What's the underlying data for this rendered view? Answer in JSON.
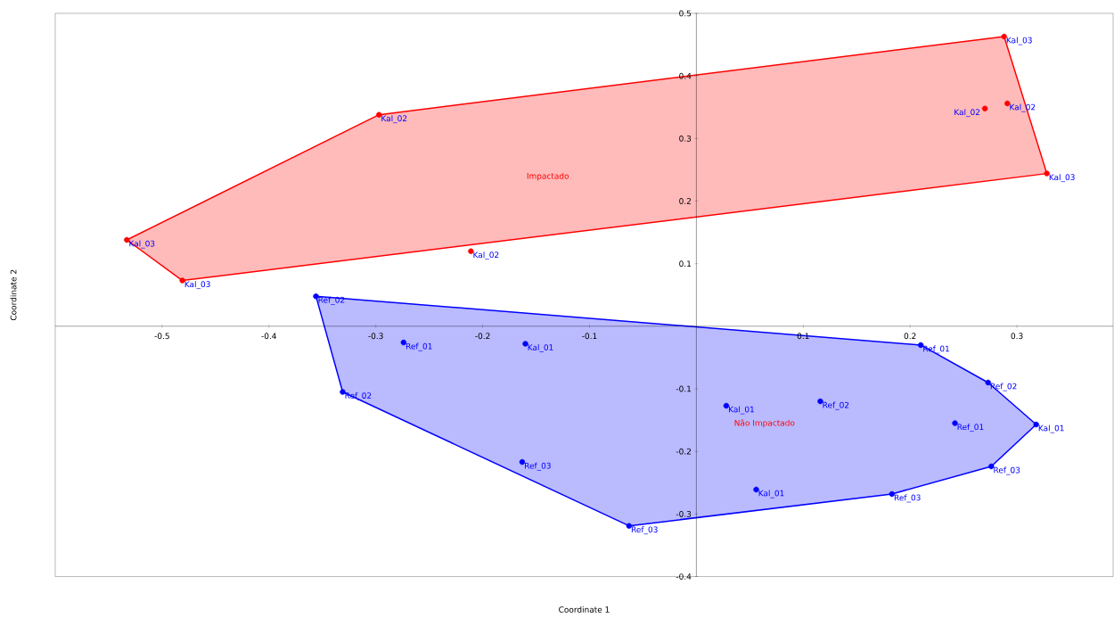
{
  "chart_data": {
    "type": "scatter",
    "xlabel": "Coordinate 1",
    "ylabel": "Coordinate 2",
    "xlim": [
      -0.6,
      0.39
    ],
    "ylim": [
      -0.4,
      0.5
    ],
    "xticks": [
      -0.5,
      -0.4,
      -0.3,
      -0.2,
      -0.1,
      0.1,
      0.2,
      0.3
    ],
    "yticks": [
      -0.4,
      -0.3,
      -0.2,
      -0.1,
      0.1,
      0.2,
      0.3,
      0.4,
      0.5
    ],
    "series": [
      {
        "type": "area",
        "marker": "none",
        "color": "#ff0000",
        "x": [
          -0.533,
          -0.297,
          0.288,
          0.328,
          -0.481
        ],
        "values": [
          0.138,
          0.338,
          0.463,
          0.244,
          0.073
        ]
      },
      {
        "type": "area",
        "marker": "none",
        "color": "#0000ff",
        "x": [
          -0.356,
          0.21,
          0.273,
          0.318,
          0.276,
          0.183,
          -0.063,
          -0.331
        ],
        "values": [
          0.048,
          -0.03,
          -0.09,
          -0.157,
          -0.224,
          -0.268,
          -0.319,
          -0.105
        ]
      },
      {
        "marker": "circle",
        "color": "#ff0000",
        "x": [
          0.288,
          0.291,
          0.27,
          0.328,
          -0.297,
          -0.533,
          -0.481,
          -0.211
        ],
        "values": [
          0.463,
          0.356,
          0.348,
          0.244,
          0.338,
          0.138,
          0.073,
          0.12
        ]
      },
      {
        "marker": "circle",
        "color": "#0000ff",
        "x": [
          -0.356,
          -0.274,
          -0.16,
          -0.331,
          -0.163,
          -0.063,
          0.028,
          0.116,
          0.056,
          0.21,
          0.273,
          0.242,
          0.318,
          0.276,
          0.183
        ],
        "values": [
          0.048,
          -0.026,
          -0.028,
          -0.105,
          -0.217,
          -0.319,
          -0.127,
          -0.12,
          -0.261,
          -0.03,
          -0.09,
          -0.155,
          -0.157,
          -0.224,
          -0.268
        ]
      }
    ],
    "annotations": [
      {
        "text": "Kal_03",
        "x": 0.288,
        "y": 0.463
      },
      {
        "text": "Kal_02",
        "x": 0.291,
        "y": 0.356
      },
      {
        "text": "Kal_02",
        "x": 0.27,
        "y": 0.348
      },
      {
        "text": "Kal_03",
        "x": 0.328,
        "y": 0.244
      },
      {
        "text": "Kal_02",
        "x": -0.297,
        "y": 0.338
      },
      {
        "text": "Kal_03",
        "x": -0.533,
        "y": 0.138
      },
      {
        "text": "Kal_03",
        "x": -0.481,
        "y": 0.073
      },
      {
        "text": "Kal_02",
        "x": -0.211,
        "y": 0.12
      },
      {
        "text": "Ref_02",
        "x": -0.356,
        "y": 0.048
      },
      {
        "text": "Ref_01",
        "x": -0.274,
        "y": -0.026
      },
      {
        "text": "Kal_01",
        "x": -0.16,
        "y": -0.028
      },
      {
        "text": "Ref_02",
        "x": -0.331,
        "y": -0.105
      },
      {
        "text": "Ref_03",
        "x": -0.163,
        "y": -0.217
      },
      {
        "text": "Ref_03",
        "x": -0.063,
        "y": -0.319
      },
      {
        "text": "Kal_01",
        "x": 0.028,
        "y": -0.127
      },
      {
        "text": "Ref_02",
        "x": 0.116,
        "y": -0.12
      },
      {
        "text": "Kal_01",
        "x": 0.056,
        "y": -0.261
      },
      {
        "text": "Ref_01",
        "x": 0.21,
        "y": -0.03
      },
      {
        "text": "Ref_02",
        "x": 0.273,
        "y": -0.09
      },
      {
        "text": "Ref_01",
        "x": 0.242,
        "y": -0.155
      },
      {
        "text": "Kal_01",
        "x": 0.318,
        "y": -0.157
      },
      {
        "text": "Ref_03",
        "x": 0.276,
        "y": -0.224
      },
      {
        "text": "Ref_03",
        "x": 0.183,
        "y": -0.268
      },
      "Impactado",
      "Não Impactado"
    ]
  }
}
